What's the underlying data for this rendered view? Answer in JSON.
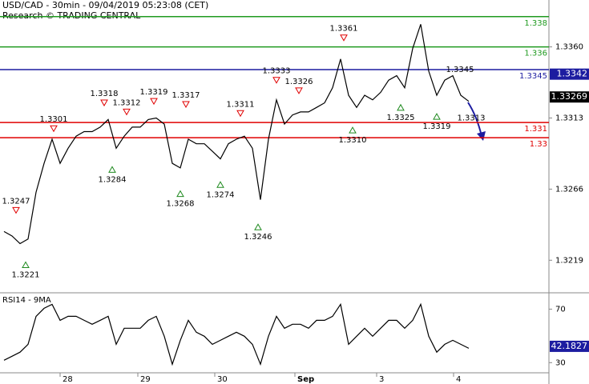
{
  "chart_data": [
    {
      "type": "line",
      "title": "USD/CAD - 30min - 09/04/2019 05:23:08 (CET)",
      "subtitle": "Research © TRADING CENTRAL",
      "xlim": [
        0,
        342.5
      ],
      "ylim": [
        1.3198,
        1.3391
      ],
      "yticks": [
        1.3219,
        1.3266,
        1.3313,
        {
          "value": 1.336,
          "label": "1.3360"
        }
      ],
      "x": [
        2.5,
        7.5,
        12.5,
        17.5,
        22.5,
        27.5,
        32.5,
        37.5,
        42.5,
        47.5,
        52.5,
        57.5,
        62.5,
        67.5,
        72.5,
        77.5,
        82.5,
        87.5,
        92.5,
        97.5,
        102.5,
        107.5,
        112.5,
        117.5,
        122.5,
        127.5,
        132.5,
        137.5,
        142.5,
        147.5,
        152.5,
        157.5,
        162.5,
        167.5,
        172.5,
        177.5,
        182.5,
        187.5,
        192.5,
        197.5,
        202.5,
        207.5,
        212.5,
        217.5,
        222.5,
        227.5,
        232.5,
        237.5,
        242.5,
        247.5,
        252.5,
        257.5,
        262.5,
        267.5,
        272.5,
        277.5,
        282.5,
        287.5,
        292.5
      ],
      "series": [
        {
          "color": "#000000",
          "values": [
            1.3238,
            1.3235,
            1.323,
            1.3233,
            1.3264,
            1.3283,
            1.3299,
            1.3283,
            1.3293,
            1.3301,
            1.3304,
            1.3304,
            1.3307,
            1.3312,
            1.3293,
            1.3301,
            1.3307,
            1.3307,
            1.3312,
            1.3313,
            1.3309,
            1.3283,
            1.328,
            1.3299,
            1.3296,
            1.3296,
            1.3291,
            1.3286,
            1.3296,
            1.3299,
            1.3301,
            1.3293,
            1.3259,
            1.3299,
            1.3325,
            1.3309,
            1.3315,
            1.3317,
            1.3317,
            1.332,
            1.3323,
            1.3333,
            1.3352,
            1.3328,
            1.332,
            1.3328,
            1.3325,
            1.333,
            1.3338,
            1.3341,
            1.3333,
            1.3359,
            1.3375,
            1.3344,
            1.3328,
            1.3338,
            1.3341,
            1.3328,
            1.3324
          ]
        }
      ],
      "levels": [
        {
          "value": 1.338,
          "color": "#1f9a1f"
        },
        {
          "value": 1.336,
          "color": "#1f9a1f"
        },
        {
          "value": 1.3345,
          "color": "#1c1ca0"
        },
        {
          "value": 1.331,
          "color": "#e00000"
        },
        {
          "value": 1.33,
          "color": "#e00000"
        }
      ],
      "last_labels": [
        {
          "value": 1.3342,
          "color": "#1c1ca0"
        },
        {
          "value": 1.33269,
          "color": "#000000"
        }
      ],
      "annotations": [
        {
          "x": 10,
          "value": 1.3247,
          "kind": "high"
        },
        {
          "x": 16,
          "value": 1.3221,
          "kind": "low"
        },
        {
          "x": 33.5,
          "value": 1.3301,
          "kind": "high"
        },
        {
          "x": 65,
          "value": 1.3318,
          "kind": "high"
        },
        {
          "x": 70,
          "value": 1.3284,
          "kind": "low"
        },
        {
          "x": 79,
          "value": 1.3312,
          "kind": "high"
        },
        {
          "x": 96,
          "value": 1.3319,
          "kind": "high"
        },
        {
          "x": 112.5,
          "value": 1.3268,
          "kind": "low"
        },
        {
          "x": 116,
          "value": 1.3317,
          "kind": "high"
        },
        {
          "x": 137.5,
          "value": 1.3274,
          "kind": "low"
        },
        {
          "x": 150,
          "value": 1.3311,
          "kind": "high"
        },
        {
          "x": 161,
          "value": 1.3246,
          "kind": "low"
        },
        {
          "x": 172.5,
          "value": 1.3333,
          "kind": "high"
        },
        {
          "x": 186.5,
          "value": 1.3326,
          "kind": "high"
        },
        {
          "x": 214.5,
          "value": 1.3361,
          "kind": "high"
        },
        {
          "x": 220,
          "value": 1.331,
          "label": "1.3310",
          "kind": "low"
        },
        {
          "x": 250,
          "value": 1.3325,
          "kind": "low"
        },
        {
          "x": 287,
          "value": 1.3345,
          "kind": "text"
        },
        {
          "x": 272.5,
          "value": 1.3319,
          "kind": "low"
        },
        {
          "x": 294,
          "value": 1.3313,
          "kind": "text"
        }
      ]
    },
    {
      "type": "line",
      "title": "RSI14 - 9MA",
      "xlim": [
        0,
        342.5
      ],
      "ylim": [
        23,
        81
      ],
      "yticks": [
        70,
        30
      ],
      "xticks": [
        {
          "value": 37.5,
          "label": "28"
        },
        {
          "value": 86,
          "label": "29"
        },
        {
          "value": 134,
          "label": "30"
        },
        {
          "value": 184,
          "label": "Sep"
        },
        {
          "value": 235,
          "label": "3"
        },
        {
          "value": 283,
          "label": "4"
        }
      ],
      "x": [
        2.5,
        7.5,
        12.5,
        17.5,
        22.5,
        27.5,
        32.5,
        37.5,
        42.5,
        47.5,
        52.5,
        57.5,
        62.5,
        67.5,
        72.5,
        77.5,
        82.5,
        87.5,
        92.5,
        97.5,
        102.5,
        107.5,
        112.5,
        117.5,
        122.5,
        127.5,
        132.5,
        137.5,
        142.5,
        147.5,
        152.5,
        157.5,
        162.5,
        167.5,
        172.5,
        177.5,
        182.5,
        187.5,
        192.5,
        197.5,
        202.5,
        207.5,
        212.5,
        217.5,
        222.5,
        227.5,
        232.5,
        237.5,
        242.5,
        247.5,
        252.5,
        257.5,
        262.5,
        267.5,
        272.5,
        277.5,
        282.5,
        287.5,
        292.5
      ],
      "series": [
        {
          "color": "#000000",
          "values": [
            31.8,
            34.8,
            37.8,
            43.7,
            64.6,
            70.6,
            73.6,
            61.6,
            64.6,
            64.6,
            61.6,
            58.7,
            61.6,
            64.6,
            43.7,
            55.7,
            55.7,
            55.7,
            61.6,
            64.6,
            49.7,
            28.8,
            46.7,
            61.6,
            52.7,
            49.7,
            43.7,
            46.7,
            49.7,
            52.7,
            49.7,
            43.7,
            28.8,
            49.7,
            64.6,
            55.7,
            58.7,
            58.7,
            55.7,
            61.6,
            61.6,
            64.6,
            73.6,
            43.7,
            49.7,
            55.7,
            49.7,
            55.7,
            61.6,
            61.6,
            55.7,
            61.6,
            73.6,
            49.7,
            37.8,
            43.7,
            46.7,
            43.7,
            40.7
          ]
        }
      ],
      "last_labels": [
        {
          "value": 42.1827,
          "color": "#1c1ca0"
        }
      ]
    }
  ]
}
